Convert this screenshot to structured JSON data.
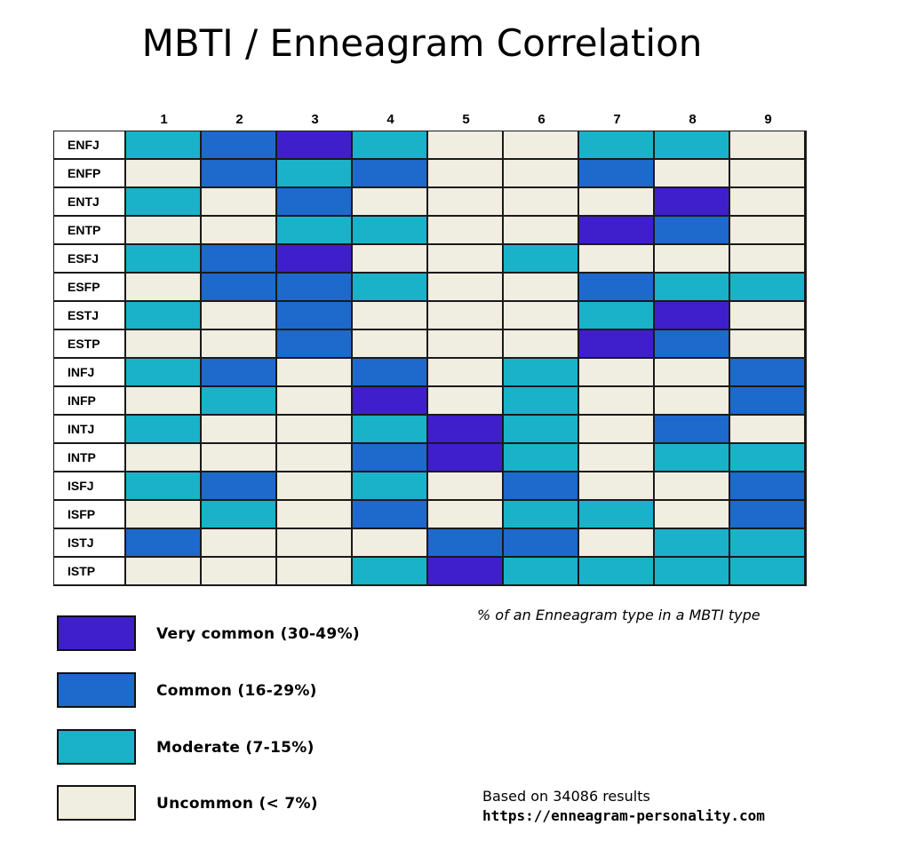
{
  "colors": {
    "very_common": "#3f1fcc",
    "common": "#1d69cc",
    "moderate": "#1ab2c9",
    "uncommon": "#f0ede1"
  },
  "chart_data": {
    "type": "heatmap",
    "title": "MBTI / Enneagram Correlation",
    "x": [
      "1",
      "2",
      "3",
      "4",
      "5",
      "6",
      "7",
      "8",
      "9"
    ],
    "y": [
      "ENFJ",
      "ENFP",
      "ENTJ",
      "ENTP",
      "ESFJ",
      "ESFP",
      "ESTJ",
      "ESTP",
      "INFJ",
      "INFP",
      "INTJ",
      "INTP",
      "ISFJ",
      "ISFP",
      "ISTJ",
      "ISTP"
    ],
    "levels": [
      "Uncommon (< 7%)",
      "Moderate (7-15%)",
      "Common (16-29%)",
      "Very common (30-49%)"
    ],
    "values": [
      [
        1,
        2,
        3,
        1,
        0,
        0,
        1,
        1,
        0
      ],
      [
        0,
        2,
        1,
        2,
        0,
        0,
        2,
        0,
        0
      ],
      [
        1,
        0,
        2,
        0,
        0,
        0,
        0,
        3,
        0
      ],
      [
        0,
        0,
        1,
        1,
        0,
        0,
        3,
        2,
        0
      ],
      [
        1,
        2,
        3,
        0,
        0,
        1,
        0,
        0,
        0
      ],
      [
        0,
        2,
        2,
        1,
        0,
        0,
        2,
        1,
        1
      ],
      [
        1,
        0,
        2,
        0,
        0,
        0,
        1,
        3,
        0
      ],
      [
        0,
        0,
        2,
        0,
        0,
        0,
        3,
        2,
        0
      ],
      [
        1,
        2,
        0,
        2,
        0,
        1,
        0,
        0,
        2
      ],
      [
        0,
        1,
        0,
        3,
        0,
        1,
        0,
        0,
        2
      ],
      [
        1,
        0,
        0,
        1,
        3,
        1,
        0,
        2,
        0
      ],
      [
        0,
        0,
        0,
        2,
        3,
        1,
        0,
        1,
        1
      ],
      [
        1,
        2,
        0,
        1,
        0,
        2,
        0,
        0,
        2
      ],
      [
        0,
        1,
        0,
        2,
        0,
        1,
        1,
        0,
        2
      ],
      [
        2,
        0,
        0,
        0,
        2,
        2,
        0,
        1,
        1
      ],
      [
        0,
        0,
        0,
        1,
        3,
        1,
        1,
        1,
        1
      ]
    ],
    "subtitle": "% of an Enneagram type in a MBTI type",
    "legend": [
      {
        "label": "Very common (30-49%)",
        "level": 3
      },
      {
        "label": "Common (16-29%)",
        "level": 2
      },
      {
        "label": "Moderate (7-15%)",
        "level": 1
      },
      {
        "label": "Uncommon (< 7%)",
        "level": 0
      }
    ]
  },
  "footer": {
    "based_on": "Based on 34086 results",
    "url": "https://enneagram-personality.com"
  }
}
